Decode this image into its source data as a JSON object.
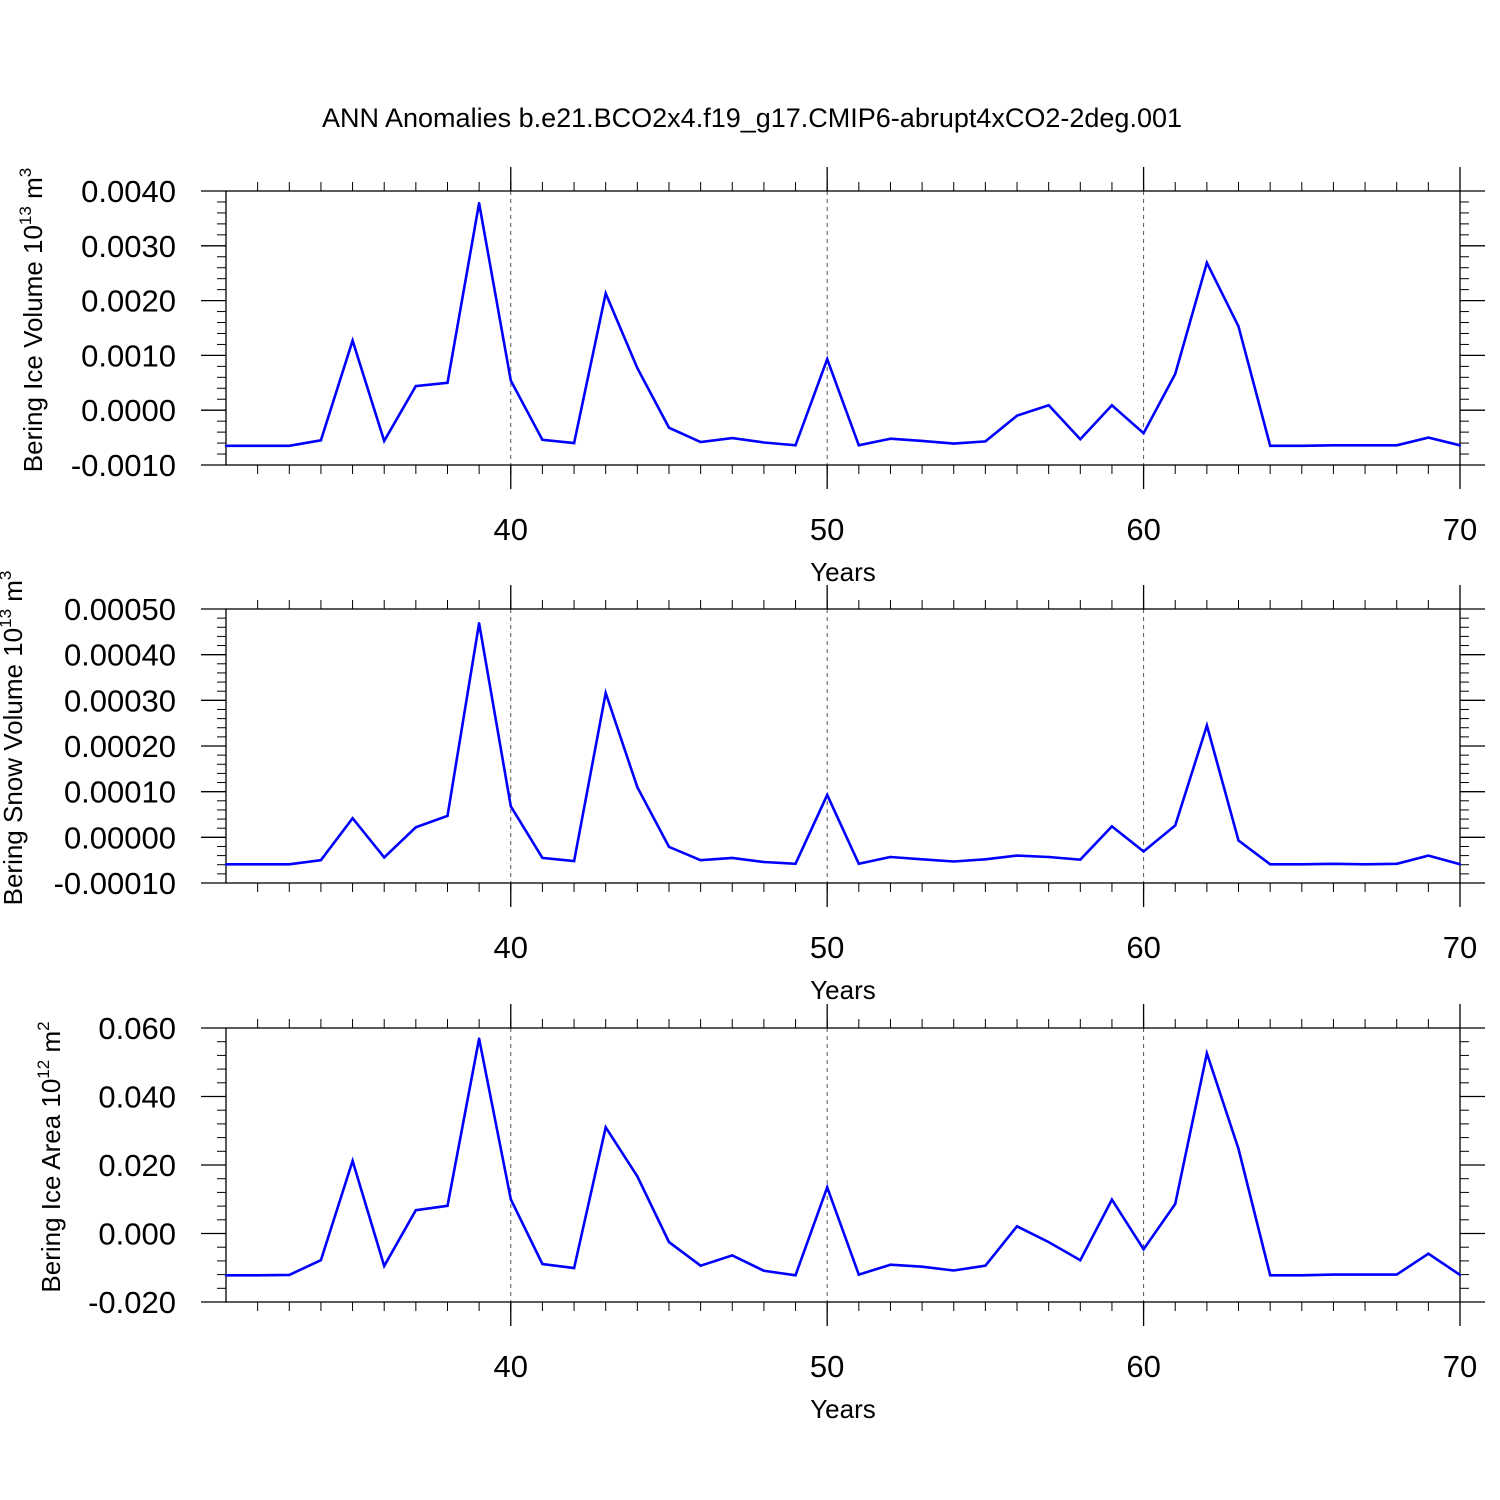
{
  "title": "ANN Anomalies b.e21.BCO2x4.f19_g17.CMIP6-abrupt4xCO2-2deg.001",
  "line_color": "#0000ff",
  "chart_data": [
    {
      "type": "line",
      "ylabel": "Bering Ice Volume 10",
      "ylabel_exp": "13",
      "ylabel_unit": " m",
      "ylabel_unit_exp": "3",
      "xlabel": "Years",
      "xlim": [
        31,
        70
      ],
      "ylim": [
        -0.001,
        0.004
      ],
      "yticks": [
        "0.0040",
        "0.0030",
        "0.0020",
        "0.0010",
        "0.0000",
        "-0.0010"
      ],
      "ytick_values": [
        0.004,
        0.003,
        0.002,
        0.001,
        0.0,
        -0.001
      ],
      "xticks": [
        "40",
        "50",
        "60",
        "70"
      ],
      "xtick_values": [
        40,
        50,
        60,
        70
      ],
      "grid_x": [
        40,
        50,
        60
      ],
      "x": [
        31,
        32,
        33,
        34,
        35,
        36,
        37,
        38,
        39,
        40,
        41,
        42,
        43,
        44,
        45,
        46,
        47,
        48,
        49,
        50,
        51,
        52,
        53,
        54,
        55,
        56,
        57,
        58,
        59,
        60,
        61,
        62,
        63,
        64,
        65,
        66,
        67,
        68,
        69,
        70
      ],
      "values": [
        -0.00065,
        -0.00065,
        -0.00065,
        -0.00055,
        0.00127,
        -0.00056,
        0.00044,
        0.0005,
        0.00378,
        0.00054,
        -0.00054,
        -0.0006,
        0.00213,
        0.00077,
        -0.00032,
        -0.00058,
        -0.00051,
        -0.00059,
        -0.00064,
        0.00093,
        -0.00064,
        -0.00052,
        -0.00056,
        -0.00061,
        -0.00057,
        -0.0001,
        9e-05,
        -0.00053,
        9e-05,
        -0.00042,
        0.00066,
        0.00269,
        0.00153,
        -0.00065,
        -0.00065,
        -0.00064,
        -0.00064,
        -0.00064,
        -0.0005,
        -0.00064
      ]
    },
    {
      "type": "line",
      "ylabel": "Bering Snow Volume 10",
      "ylabel_exp": "13",
      "ylabel_unit": " m",
      "ylabel_unit_exp": "3",
      "xlabel": "Years",
      "xlim": [
        31,
        70
      ],
      "ylim": [
        -0.0001,
        0.0005
      ],
      "yticks": [
        "0.00050",
        "0.00040",
        "0.00030",
        "0.00020",
        "0.00010",
        "0.00000",
        "-0.00010"
      ],
      "ytick_values": [
        0.0005,
        0.0004,
        0.0003,
        0.0002,
        0.0001,
        0.0,
        -0.0001
      ],
      "xticks": [
        "40",
        "50",
        "60",
        "70"
      ],
      "xtick_values": [
        40,
        50,
        60,
        70
      ],
      "grid_x": [
        40,
        50,
        60
      ],
      "x": [
        31,
        32,
        33,
        34,
        35,
        36,
        37,
        38,
        39,
        40,
        41,
        42,
        43,
        44,
        45,
        46,
        47,
        48,
        49,
        50,
        51,
        52,
        53,
        54,
        55,
        56,
        57,
        58,
        59,
        60,
        61,
        62,
        63,
        64,
        65,
        66,
        67,
        68,
        69,
        70
      ],
      "values": [
        -5.9e-05,
        -5.9e-05,
        -5.9e-05,
        -5e-05,
        4.2e-05,
        -4.4e-05,
        2.2e-05,
        4.7e-05,
        0.000469,
        6.8e-05,
        -4.5e-05,
        -5.2e-05,
        0.000316,
        0.00011,
        -2.1e-05,
        -5e-05,
        -4.5e-05,
        -5.4e-05,
        -5.8e-05,
        9.3e-05,
        -5.8e-05,
        -4.3e-05,
        -4.8e-05,
        -5.3e-05,
        -4.8e-05,
        -4e-05,
        -4.3e-05,
        -4.9e-05,
        2.4e-05,
        -3.1e-05,
        2.6e-05,
        0.000245,
        -7e-06,
        -5.9e-05,
        -5.9e-05,
        -5.8e-05,
        -5.9e-05,
        -5.8e-05,
        -4e-05,
        -5.9e-05
      ]
    },
    {
      "type": "line",
      "ylabel": "Bering Ice Area 10",
      "ylabel_exp": "12",
      "ylabel_unit": " m",
      "ylabel_unit_exp": "2",
      "xlabel": "Years",
      "xlim": [
        31,
        70
      ],
      "ylim": [
        -0.02,
        0.06
      ],
      "yticks": [
        "0.060",
        "0.040",
        "0.020",
        "0.000",
        "-0.020"
      ],
      "ytick_values": [
        0.06,
        0.04,
        0.02,
        0.0,
        -0.02
      ],
      "xticks": [
        "40",
        "50",
        "60",
        "70"
      ],
      "xtick_values": [
        40,
        50,
        60,
        70
      ],
      "grid_x": [
        40,
        50,
        60
      ],
      "x": [
        31,
        32,
        33,
        34,
        35,
        36,
        37,
        38,
        39,
        40,
        41,
        42,
        43,
        44,
        45,
        46,
        47,
        48,
        49,
        50,
        51,
        52,
        53,
        54,
        55,
        56,
        57,
        58,
        59,
        60,
        61,
        62,
        63,
        64,
        65,
        66,
        67,
        68,
        69,
        70
      ],
      "values": [
        -0.0122,
        -0.0122,
        -0.0121,
        -0.0078,
        0.0212,
        -0.0095,
        0.0068,
        0.0081,
        0.0569,
        0.01,
        -0.0089,
        -0.0101,
        0.031,
        0.0167,
        -0.0025,
        -0.0094,
        -0.0064,
        -0.0109,
        -0.0122,
        0.0135,
        -0.012,
        -0.0091,
        -0.0097,
        -0.0108,
        -0.0094,
        0.0021,
        -0.0025,
        -0.0078,
        0.0099,
        -0.0046,
        0.0086,
        0.0526,
        0.0247,
        -0.0122,
        -0.0122,
        -0.012,
        -0.012,
        -0.012,
        -0.0059,
        -0.0121
      ]
    }
  ]
}
